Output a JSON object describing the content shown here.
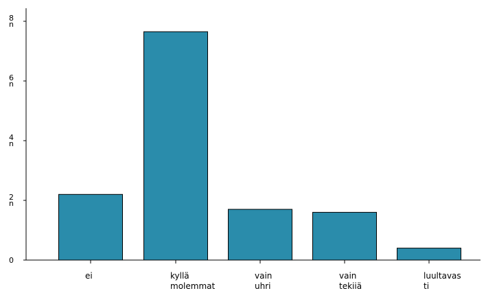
{
  "chart_data": {
    "type": "bar",
    "title": "",
    "xlabel": "",
    "ylabel": "",
    "categories": [
      [
        "ei"
      ],
      [
        "kyllä",
        "molemmat"
      ],
      [
        "vain",
        "uhri"
      ],
      [
        "vain",
        "tekiiä"
      ],
      [
        "luultavas",
        "ti"
      ]
    ],
    "values": [
      2.2,
      7.65,
      1.7,
      1.6,
      0.4
    ],
    "ylim": [
      0,
      8
    ],
    "yticks": [
      0,
      2,
      4,
      6,
      8
    ],
    "ytick_labels": [
      "0",
      "2\nn",
      "4\nn",
      "6\nn",
      "8\nn"
    ],
    "grid": false,
    "legend": "none",
    "bar_color": "#2A8CAB",
    "bar_edge_color": "#000000"
  }
}
